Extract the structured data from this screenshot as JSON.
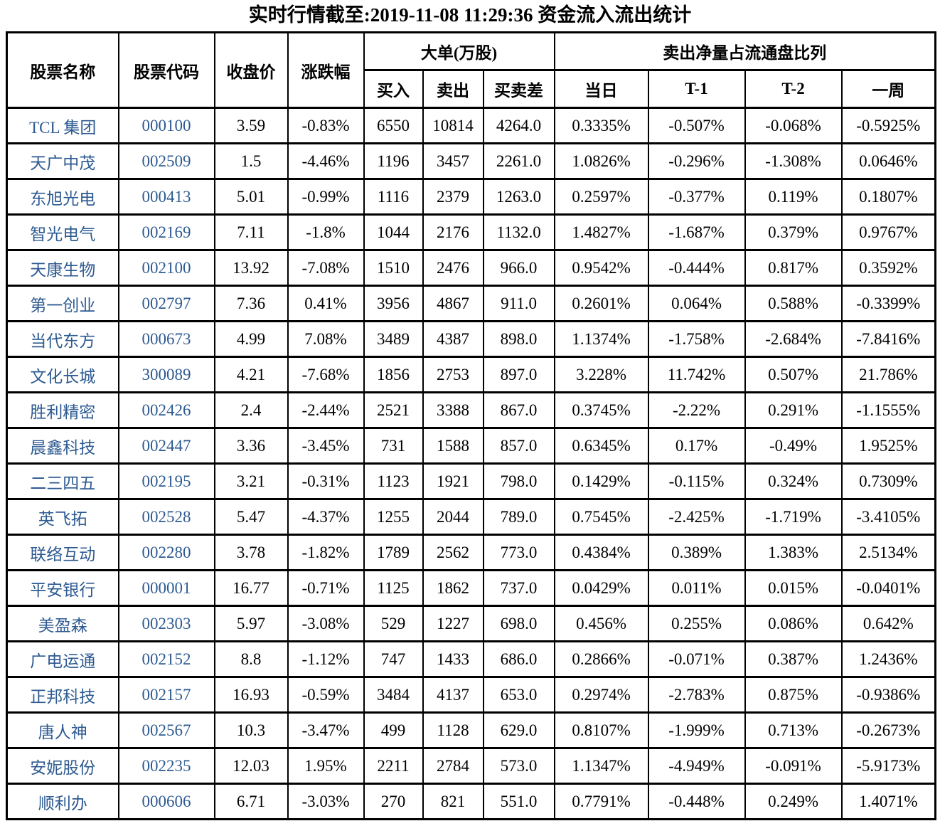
{
  "title": "实时行情截至:2019-11-08 11:29:36 资金流入流出统计",
  "colors": {
    "stock_link_blue": "#2d5a91",
    "text": "#000000",
    "border": "#000000",
    "background": "#ffffff"
  },
  "table": {
    "header": {
      "stock_name": "股票名称",
      "stock_code": "股票代码",
      "close_price": "收盘价",
      "change_pct": "涨跌幅",
      "big_order_group": "大单(万股)",
      "buy": "买入",
      "sell": "卖出",
      "buy_sell_diff": "买卖差",
      "net_sell_ratio_group": "卖出净量占流通盘比列",
      "today": "当日",
      "t_minus_1": "T-1",
      "t_minus_2": "T-2",
      "week": "一周"
    },
    "rows": [
      [
        "TCL 集团",
        "000100",
        "3.59",
        "-0.83%",
        "6550",
        "10814",
        "4264.0",
        "0.3335%",
        "-0.507%",
        "-0.068%",
        "-0.5925%"
      ],
      [
        "天广中茂",
        "002509",
        "1.5",
        "-4.46%",
        "1196",
        "3457",
        "2261.0",
        "1.0826%",
        "-0.296%",
        "-1.308%",
        "0.0646%"
      ],
      [
        "东旭光电",
        "000413",
        "5.01",
        "-0.99%",
        "1116",
        "2379",
        "1263.0",
        "0.2597%",
        "-0.377%",
        "0.119%",
        "0.1807%"
      ],
      [
        "智光电气",
        "002169",
        "7.11",
        "-1.8%",
        "1044",
        "2176",
        "1132.0",
        "1.4827%",
        "-1.687%",
        "0.379%",
        "0.9767%"
      ],
      [
        "天康生物",
        "002100",
        "13.92",
        "-7.08%",
        "1510",
        "2476",
        "966.0",
        "0.9542%",
        "-0.444%",
        "0.817%",
        "0.3592%"
      ],
      [
        "第一创业",
        "002797",
        "7.36",
        "0.41%",
        "3956",
        "4867",
        "911.0",
        "0.2601%",
        "0.064%",
        "0.588%",
        "-0.3399%"
      ],
      [
        "当代东方",
        "000673",
        "4.99",
        "7.08%",
        "3489",
        "4387",
        "898.0",
        "1.1374%",
        "-1.758%",
        "-2.684%",
        "-7.8416%"
      ],
      [
        "文化长城",
        "300089",
        "4.21",
        "-7.68%",
        "1856",
        "2753",
        "897.0",
        "3.228%",
        "11.742%",
        "0.507%",
        "21.786%"
      ],
      [
        "胜利精密",
        "002426",
        "2.4",
        "-2.44%",
        "2521",
        "3388",
        "867.0",
        "0.3745%",
        "-2.22%",
        "0.291%",
        "-1.1555%"
      ],
      [
        "晨鑫科技",
        "002447",
        "3.36",
        "-3.45%",
        "731",
        "1588",
        "857.0",
        "0.6345%",
        "0.17%",
        "-0.49%",
        "1.9525%"
      ],
      [
        "二三四五",
        "002195",
        "3.21",
        "-0.31%",
        "1123",
        "1921",
        "798.0",
        "0.1429%",
        "-0.115%",
        "0.324%",
        "0.7309%"
      ],
      [
        "英飞拓",
        "002528",
        "5.47",
        "-4.37%",
        "1255",
        "2044",
        "789.0",
        "0.7545%",
        "-2.425%",
        "-1.719%",
        "-3.4105%"
      ],
      [
        "联络互动",
        "002280",
        "3.78",
        "-1.82%",
        "1789",
        "2562",
        "773.0",
        "0.4384%",
        "0.389%",
        "1.383%",
        "2.5134%"
      ],
      [
        "平安银行",
        "000001",
        "16.77",
        "-0.71%",
        "1125",
        "1862",
        "737.0",
        "0.0429%",
        "0.011%",
        "0.015%",
        "-0.0401%"
      ],
      [
        "美盈森",
        "002303",
        "5.97",
        "-3.08%",
        "529",
        "1227",
        "698.0",
        "0.456%",
        "0.255%",
        "0.086%",
        "0.642%"
      ],
      [
        "广电运通",
        "002152",
        "8.8",
        "-1.12%",
        "747",
        "1433",
        "686.0",
        "0.2866%",
        "-0.071%",
        "0.387%",
        "1.2436%"
      ],
      [
        "正邦科技",
        "002157",
        "16.93",
        "-0.59%",
        "3484",
        "4137",
        "653.0",
        "0.2974%",
        "-2.783%",
        "0.875%",
        "-0.9386%"
      ],
      [
        "唐人神",
        "002567",
        "10.3",
        "-3.47%",
        "499",
        "1128",
        "629.0",
        "0.8107%",
        "-1.999%",
        "0.713%",
        "-0.2673%"
      ],
      [
        "安妮股份",
        "002235",
        "12.03",
        "1.95%",
        "2211",
        "2784",
        "573.0",
        "1.1347%",
        "-4.949%",
        "-0.091%",
        "-5.9173%"
      ],
      [
        "顺利办",
        "000606",
        "6.71",
        "-3.03%",
        "270",
        "821",
        "551.0",
        "0.7791%",
        "-0.448%",
        "0.249%",
        "1.4071%"
      ]
    ]
  }
}
